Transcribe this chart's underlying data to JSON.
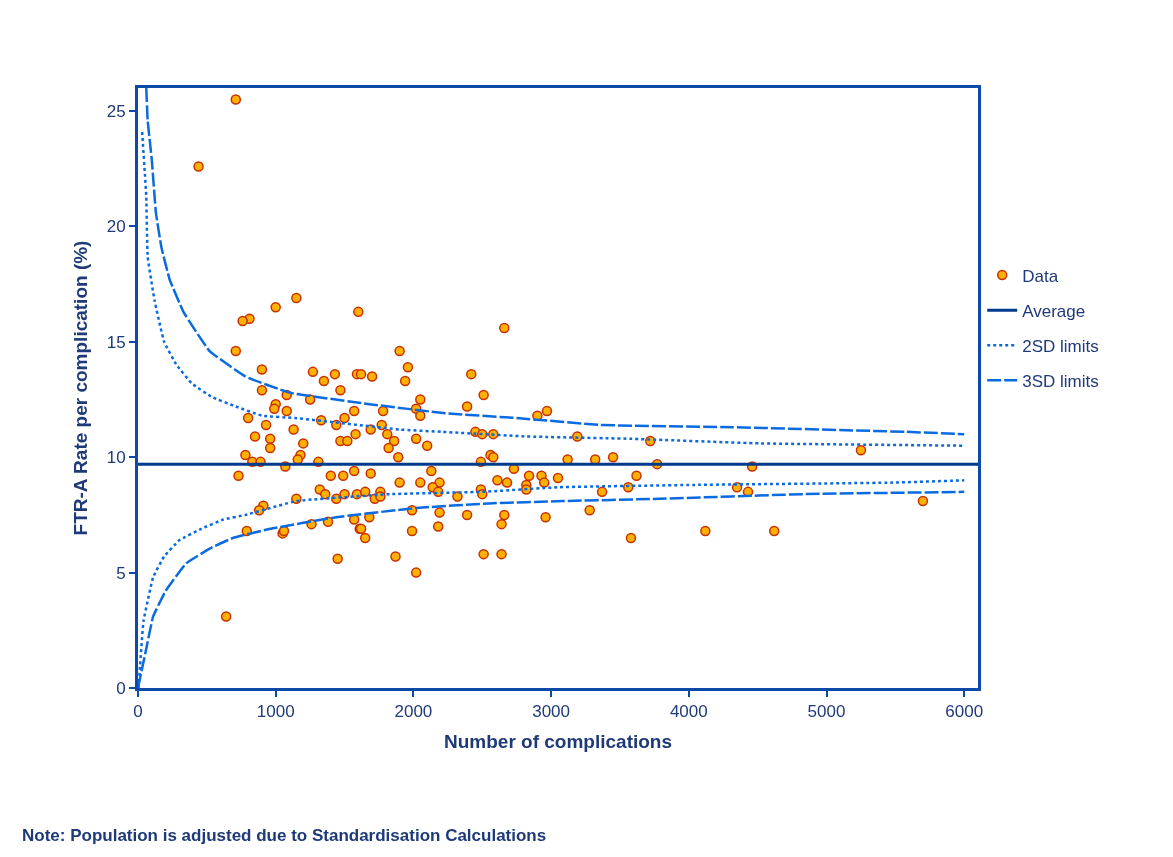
{
  "chart_data": {
    "type": "scatter",
    "xlabel": "Number of complications",
    "ylabel": "FTR-A Rate per complication (%)",
    "xlim": [
      0,
      6100
    ],
    "xticks": [
      0,
      1000,
      2000,
      3000,
      4000,
      5000,
      6000
    ],
    "ylim": [
      0,
      26
    ],
    "yticks": [
      0,
      5,
      10,
      15,
      20,
      25
    ],
    "grid": false,
    "legend": "right",
    "annotations": [
      "Note: Population is adjusted due to Standardisation Calculations"
    ],
    "ref_lines": [
      {
        "axis": "y",
        "value": 9.7,
        "label": "Average",
        "color": "#003a8c",
        "line_style": "solid"
      }
    ],
    "series": [
      {
        "name": "Data",
        "marker": "circle",
        "color": "#ffb000",
        "x": [
          710,
          440,
          640,
          710,
          1150,
          1000,
          810,
          760,
          900,
          1270,
          1350,
          1430,
          1590,
          1600,
          900,
          1080,
          1250,
          1470,
          1000,
          990,
          1080,
          800,
          930,
          1330,
          1440,
          1500,
          1570,
          1130,
          850,
          960,
          1470,
          1520,
          1580,
          1200,
          960,
          780,
          1180,
          1160,
          830,
          890,
          1310,
          1070,
          730,
          1400,
          1490,
          1570,
          1320,
          1360,
          1440,
          1500,
          1590,
          1150,
          910,
          880,
          790,
          1260,
          1380,
          1570,
          1610,
          1050,
          1060,
          1450,
          2660,
          1900,
          1960,
          1620,
          1700,
          1940,
          2420,
          2510,
          1780,
          2050,
          2020,
          2050,
          2390,
          2900,
          2970,
          1770,
          1690,
          1810,
          1860,
          1820,
          2020,
          2100,
          2450,
          2500,
          2580,
          1890,
          2560,
          2580,
          2490,
          3120,
          1690,
          2130,
          2730,
          1900,
          2050,
          2190,
          2140,
          2180,
          2610,
          2680,
          2840,
          2930,
          2950,
          3050,
          2820,
          2820,
          1650,
          1720,
          1760,
          1760,
          2320,
          2490,
          2500,
          1990,
          2190,
          2390,
          2660,
          2640,
          2960,
          1620,
          1680,
          1650,
          1990,
          2180,
          1870,
          2020,
          2510,
          2640,
          3190,
          3720,
          3320,
          3450,
          3770,
          4460,
          5250,
          3620,
          3370,
          3560,
          4350,
          4430,
          3280,
          3580,
          4120,
          4620,
          5700
        ],
        "values": [
          25.5,
          22.6,
          3.1,
          14.6,
          16.9,
          16.5,
          16.0,
          15.9,
          13.8,
          13.7,
          13.3,
          13.6,
          13.6,
          16.3,
          12.9,
          12.7,
          12.5,
          12.9,
          12.3,
          12.1,
          12.0,
          11.7,
          11.4,
          11.6,
          11.4,
          11.7,
          12.0,
          11.2,
          10.9,
          10.8,
          10.7,
          10.7,
          11.0,
          10.6,
          10.4,
          10.1,
          10.1,
          9.9,
          9.8,
          9.8,
          9.8,
          9.6,
          9.2,
          9.2,
          9.2,
          9.4,
          8.6,
          8.4,
          8.2,
          8.4,
          8.4,
          8.2,
          7.9,
          7.7,
          6.8,
          7.1,
          7.2,
          7.3,
          6.9,
          6.7,
          6.8,
          5.6,
          15.6,
          14.6,
          13.9,
          13.6,
          13.5,
          13.3,
          13.6,
          12.7,
          12.0,
          12.5,
          12.1,
          11.8,
          12.2,
          11.8,
          12.0,
          11.4,
          11.2,
          11.0,
          10.7,
          10.4,
          10.8,
          10.5,
          11.1,
          11.0,
          11.0,
          10.0,
          10.1,
          10.0,
          9.8,
          9.9,
          9.3,
          9.4,
          9.5,
          8.9,
          8.9,
          8.9,
          8.7,
          8.5,
          9.0,
          8.9,
          9.2,
          9.2,
          8.9,
          9.1,
          8.8,
          8.6,
          8.5,
          8.2,
          8.5,
          8.3,
          8.3,
          8.6,
          8.4,
          7.7,
          7.6,
          7.5,
          7.5,
          7.1,
          7.4,
          6.9,
          7.4,
          6.5,
          6.8,
          7.0,
          5.7,
          5.0,
          5.8,
          5.8,
          10.9,
          10.7,
          9.9,
          10.0,
          9.7,
          9.6,
          10.3,
          9.2,
          8.5,
          8.7,
          8.7,
          8.5,
          7.7,
          6.5,
          6.8,
          6.8,
          8.1
        ]
      },
      {
        "name": "2SD limits",
        "type": "line",
        "marker": "none",
        "line_style": "dotted",
        "color": "#0a6ae0",
        "x": [
          30,
          60,
          70,
          120,
          190,
          280,
          390,
          540,
          710,
          900,
          1140,
          1900,
          2210,
          2820,
          3570,
          4510,
          6000
        ],
        "values": [
          24.1,
          21.3,
          18.7,
          16.8,
          15.0,
          14.0,
          13.2,
          12.6,
          12.2,
          11.8,
          11.7,
          11.2,
          11.1,
          10.9,
          10.8,
          10.6,
          10.5
        ]
      },
      {
        "name": null,
        "type": "line",
        "marker": "none",
        "line_style": "dotted",
        "color": "#0a6ae0",
        "x": [
          5,
          15,
          40,
          110,
          190,
          300,
          460,
          620,
          780,
          1150,
          1830,
          2500,
          3060,
          4030,
          5480,
          6000
        ],
        "values": [
          0,
          1.0,
          2.9,
          4.8,
          5.7,
          6.4,
          6.9,
          7.3,
          7.5,
          8.1,
          8.4,
          8.5,
          8.7,
          8.8,
          8.9,
          9.0
        ]
      },
      {
        "name": "3SD limits",
        "type": "line",
        "marker": "none",
        "line_style": "dashed",
        "color": "#0a6ae0",
        "x": [
          60,
          70,
          100,
          130,
          170,
          230,
          330,
          520,
          780,
          1100,
          1680,
          2240,
          2750,
          3350,
          4320,
          5580,
          6000
        ],
        "values": [
          26.0,
          24.6,
          22.9,
          20.6,
          19.1,
          17.7,
          16.3,
          14.6,
          13.5,
          12.8,
          12.3,
          11.9,
          11.7,
          11.4,
          11.3,
          11.1,
          11.0
        ]
      },
      {
        "name": null,
        "type": "line",
        "marker": "none",
        "line_style": "dashed",
        "color": "#0a6ae0",
        "x": [
          0,
          60,
          110,
          200,
          350,
          540,
          690,
          960,
          1440,
          2020,
          2550,
          3080,
          3790,
          4830,
          6000
        ],
        "values": [
          0,
          1.7,
          3.1,
          4.2,
          5.4,
          6.1,
          6.5,
          6.9,
          7.4,
          7.8,
          8.0,
          8.1,
          8.2,
          8.4,
          8.5
        ]
      }
    ]
  }
}
